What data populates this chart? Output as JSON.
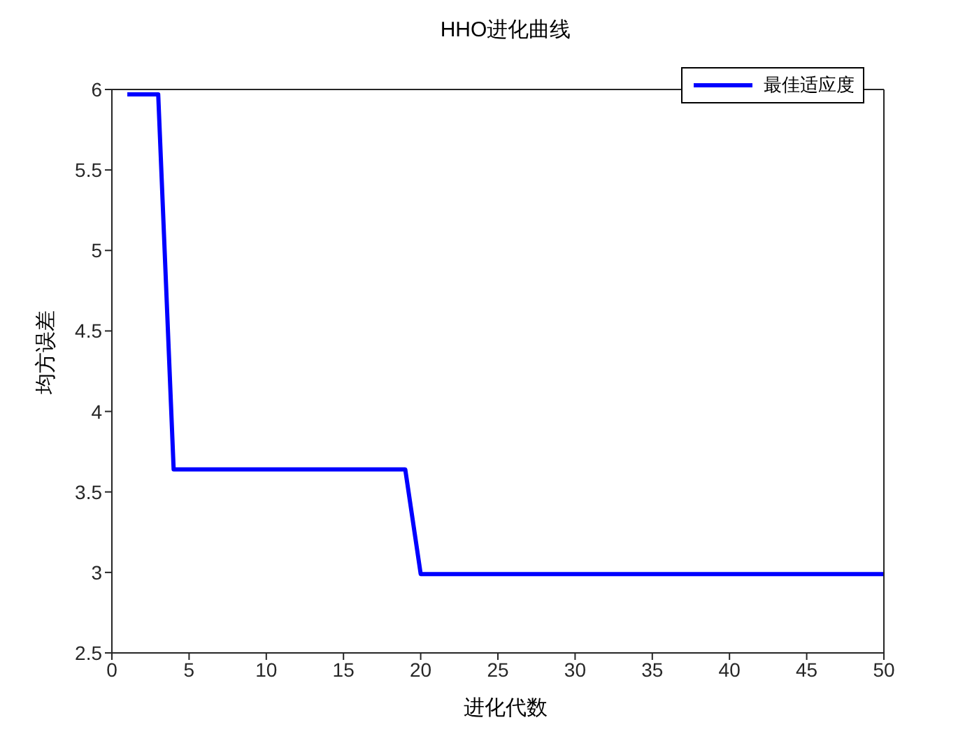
{
  "chart_data": {
    "type": "line",
    "title": "HHO进化曲线",
    "xlabel": "进化代数",
    "ylabel": "均方误差",
    "x": [
      1,
      2,
      3,
      4,
      5,
      6,
      7,
      8,
      9,
      10,
      11,
      12,
      13,
      14,
      15,
      16,
      17,
      18,
      19,
      20,
      21,
      22,
      23,
      24,
      25,
      26,
      27,
      28,
      29,
      30,
      31,
      32,
      33,
      34,
      35,
      36,
      37,
      38,
      39,
      40,
      41,
      42,
      43,
      44,
      45,
      46,
      47,
      48,
      49,
      50
    ],
    "series": [
      {
        "name": "最佳适应度",
        "color": "#0000ff",
        "values": [
          5.97,
          5.97,
          5.97,
          3.64,
          3.64,
          3.64,
          3.64,
          3.64,
          3.64,
          3.64,
          3.64,
          3.64,
          3.64,
          3.64,
          3.64,
          3.64,
          3.64,
          3.64,
          3.64,
          2.99,
          2.99,
          2.99,
          2.99,
          2.99,
          2.99,
          2.99,
          2.99,
          2.99,
          2.99,
          2.99,
          2.99,
          2.99,
          2.99,
          2.99,
          2.99,
          2.99,
          2.99,
          2.99,
          2.99,
          2.99,
          2.99,
          2.99,
          2.99,
          2.99,
          2.99,
          2.99,
          2.99,
          2.99,
          2.99,
          2.99
        ]
      }
    ],
    "xlim": [
      0,
      50
    ],
    "xticks": [
      0,
      5,
      10,
      15,
      20,
      25,
      30,
      35,
      40,
      45,
      50
    ],
    "ylim": [
      2.5,
      6
    ],
    "yticks": [
      2.5,
      3,
      3.5,
      4,
      4.5,
      5,
      5.5,
      6
    ],
    "grid": false,
    "legend": "top right",
    "marker": "none",
    "line_style": "solid"
  }
}
